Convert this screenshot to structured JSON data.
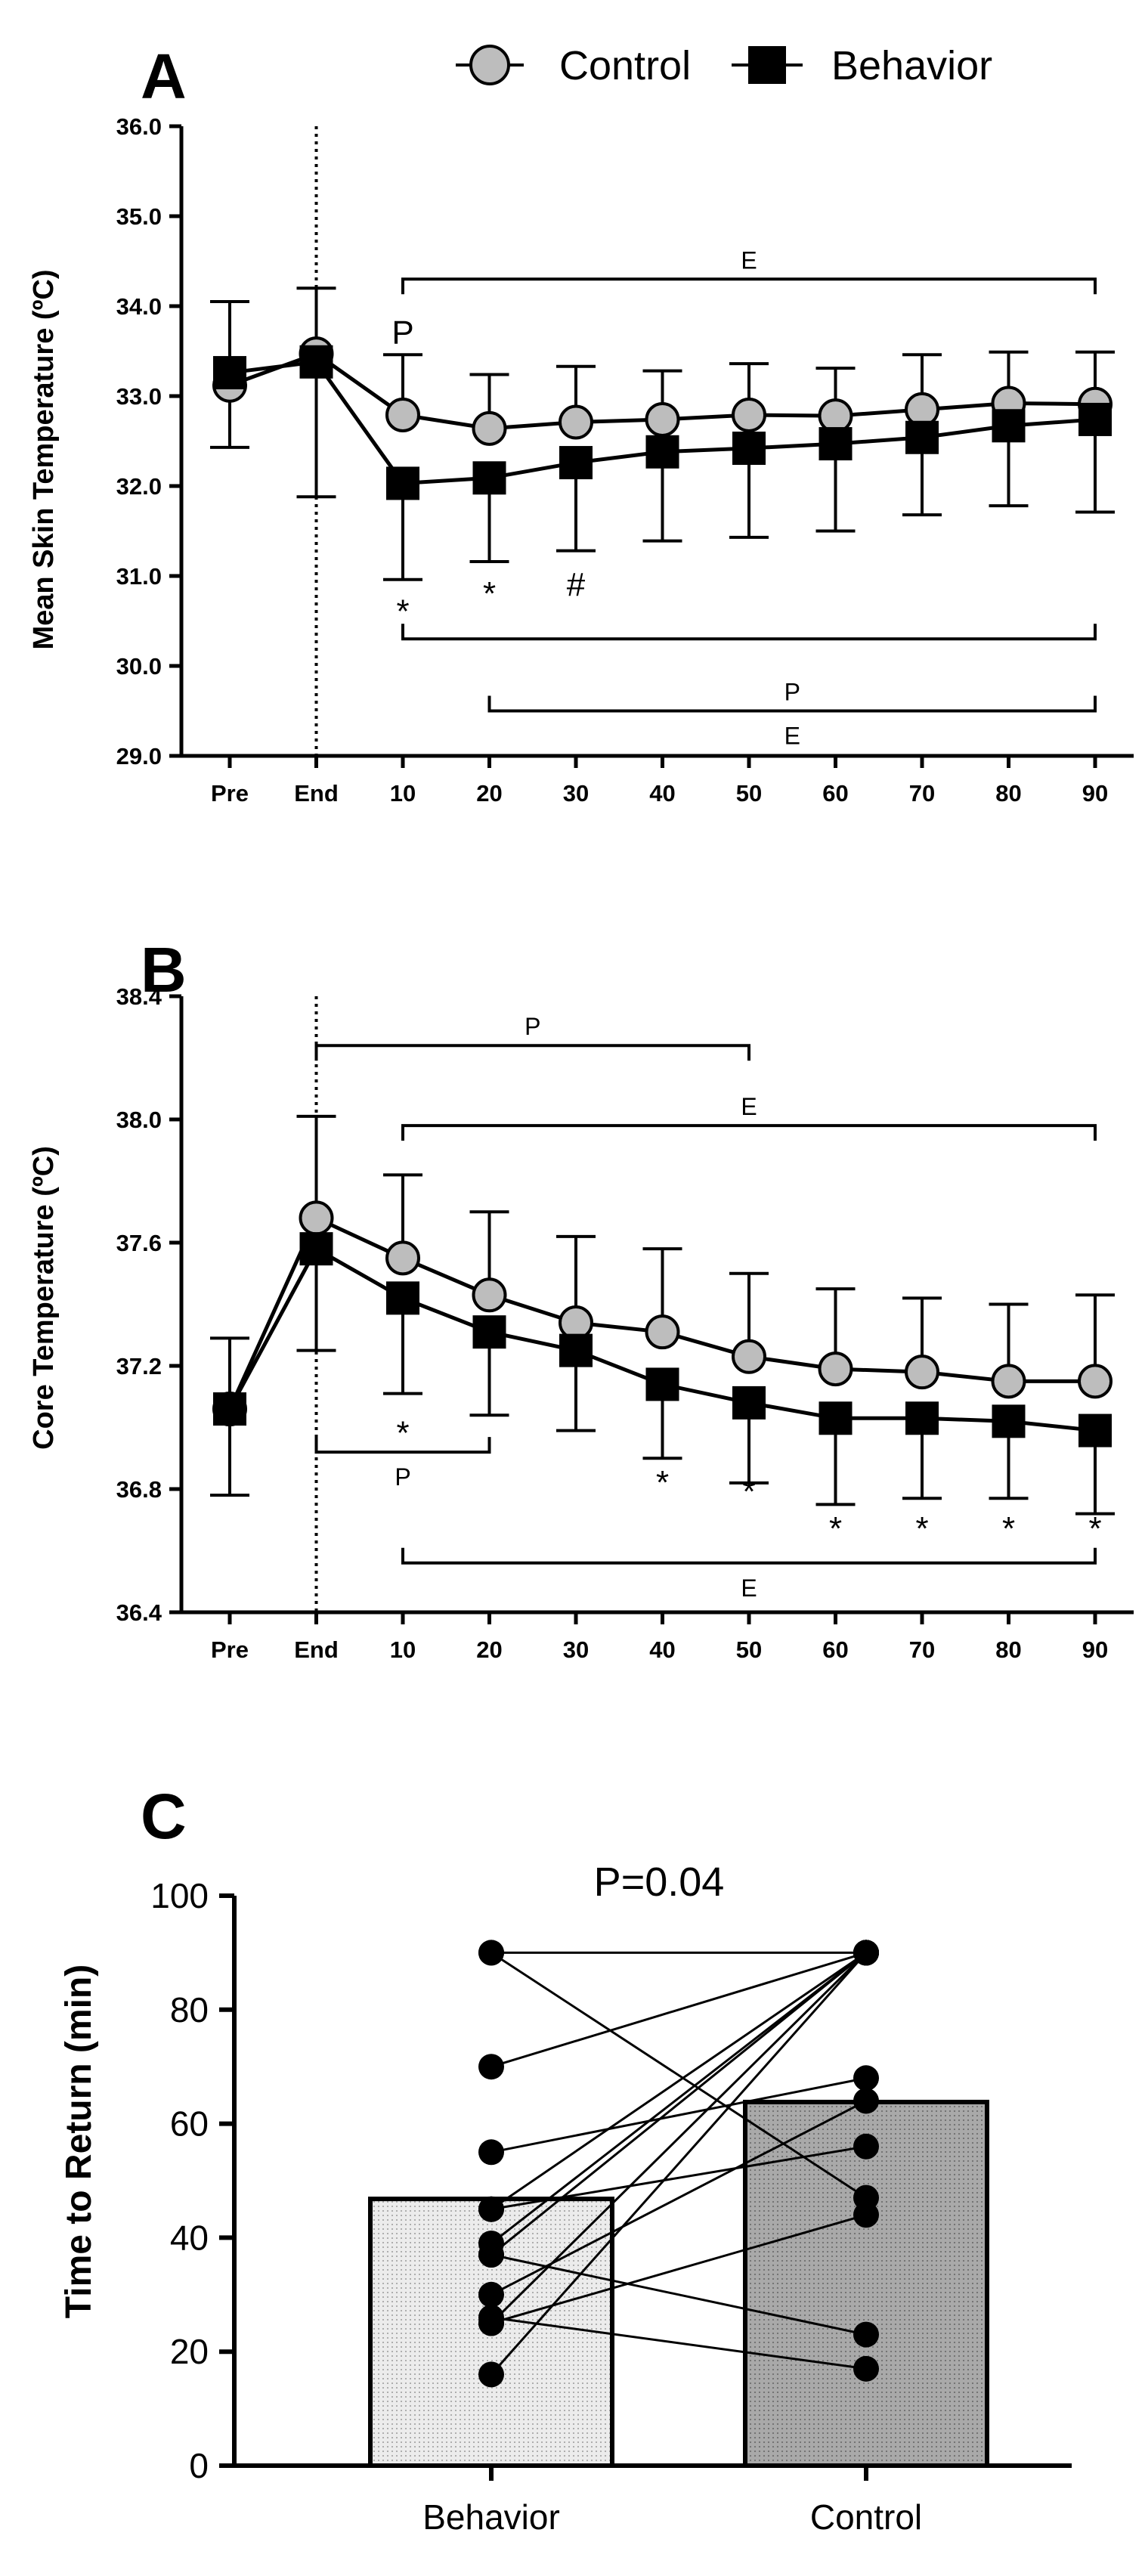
{
  "chart_data": [
    {
      "panel": "A",
      "type": "line",
      "ylabel": "Mean Skin Temperature (ºC)",
      "ylim": [
        29.0,
        36.0
      ],
      "yticks": [
        "29.0",
        "30.0",
        "31.0",
        "32.0",
        "33.0",
        "34.0",
        "35.0",
        "36.0"
      ],
      "categories": [
        "Pre",
        "End",
        "10",
        "20",
        "30",
        "40",
        "50",
        "60",
        "70",
        "80",
        "90"
      ],
      "series": [
        {
          "name": "Control",
          "marker": "circle",
          "values": [
            33.12,
            33.47,
            32.79,
            32.64,
            32.71,
            32.74,
            32.79,
            32.78,
            32.85,
            32.92,
            32.91
          ],
          "err_up": [
            34.05,
            34.2,
            33.46,
            33.24,
            33.33,
            33.28,
            33.36,
            33.31,
            33.46,
            33.49,
            33.49
          ],
          "err_down": [
            null,
            null,
            null,
            null,
            null,
            null,
            null,
            null,
            null,
            null,
            null
          ]
        },
        {
          "name": "Behavior",
          "marker": "square",
          "values": [
            33.26,
            33.38,
            32.03,
            32.09,
            32.26,
            32.38,
            32.42,
            32.47,
            32.54,
            32.67,
            32.74
          ],
          "err_up": [
            null,
            null,
            null,
            null,
            null,
            null,
            null,
            null,
            null,
            null,
            null
          ],
          "err_down": [
            32.43,
            31.88,
            30.96,
            31.16,
            31.28,
            31.39,
            31.43,
            31.5,
            31.68,
            31.78,
            31.71
          ]
        }
      ],
      "event_line_at": "End",
      "annotations": [
        {
          "text": "P",
          "at": "10",
          "y": 33.7
        },
        {
          "text": "*",
          "at": "10",
          "y": 30.6
        },
        {
          "text": "*",
          "at": "20",
          "y": 30.8
        },
        {
          "text": "#",
          "at": "30",
          "y": 30.9
        }
      ],
      "brackets": [
        {
          "from": "10",
          "to": "90",
          "y": 34.3,
          "label": "E",
          "ticks": "down",
          "label_pos": "above"
        },
        {
          "from": "10",
          "to": "90",
          "y": 30.3,
          "label": "",
          "ticks": "up",
          "label_pos": "none"
        },
        {
          "from": "20",
          "to": "90",
          "y": 29.5,
          "label": "P",
          "ticks": "up",
          "label_pos": "above"
        },
        {
          "from": "20",
          "to": "90",
          "y": 29.5,
          "label": "E",
          "ticks": "up",
          "label_pos": "below"
        }
      ]
    },
    {
      "panel": "B",
      "type": "line",
      "ylabel": "Core Temperature (ºC)",
      "ylim": [
        36.4,
        38.4
      ],
      "yticks": [
        "36.4",
        "36.8",
        "37.2",
        "37.6",
        "38.0",
        "38.4"
      ],
      "categories": [
        "Pre",
        "End",
        "10",
        "20",
        "30",
        "40",
        "50",
        "60",
        "70",
        "80",
        "90"
      ],
      "series": [
        {
          "name": "Control",
          "marker": "circle",
          "values": [
            37.06,
            37.68,
            37.55,
            37.43,
            37.34,
            37.31,
            37.23,
            37.19,
            37.18,
            37.15,
            37.15
          ],
          "err_up": [
            37.29,
            38.01,
            37.82,
            37.7,
            37.62,
            37.58,
            37.5,
            37.45,
            37.42,
            37.4,
            37.43
          ],
          "err_down": [
            null,
            null,
            null,
            null,
            null,
            null,
            null,
            null,
            null,
            null,
            null
          ]
        },
        {
          "name": "Behavior",
          "marker": "square",
          "values": [
            37.06,
            37.58,
            37.42,
            37.31,
            37.25,
            37.14,
            37.08,
            37.03,
            37.03,
            37.02,
            36.99
          ],
          "err_up": [
            null,
            null,
            null,
            null,
            null,
            null,
            null,
            null,
            null,
            null,
            null
          ],
          "err_down": [
            36.78,
            37.25,
            37.11,
            37.04,
            36.99,
            36.9,
            36.82,
            36.75,
            36.77,
            36.77,
            36.72
          ]
        }
      ],
      "event_line_at": "End",
      "annotations": [
        {
          "text": "*",
          "at": "10",
          "y": 36.98
        },
        {
          "text": "*",
          "at": "40",
          "y": 36.82
        },
        {
          "text": "*",
          "at": "50",
          "y": 36.79
        },
        {
          "text": "*",
          "at": "60",
          "y": 36.67
        },
        {
          "text": "*",
          "at": "70",
          "y": 36.67
        },
        {
          "text": "*",
          "at": "80",
          "y": 36.67
        },
        {
          "text": "*",
          "at": "90",
          "y": 36.67
        }
      ],
      "brackets": [
        {
          "from": "End",
          "to": "50",
          "y": 38.24,
          "label": "P",
          "ticks": "down",
          "label_pos": "above"
        },
        {
          "from": "10",
          "to": "90",
          "y": 37.98,
          "label": "E",
          "ticks": "down",
          "label_pos": "above"
        },
        {
          "from": "End",
          "to": "20",
          "y": 36.92,
          "label": "P",
          "ticks": "up",
          "label_pos": "below"
        },
        {
          "from": "10",
          "to": "90",
          "y": 36.56,
          "label": "E",
          "ticks": "up",
          "label_pos": "below"
        }
      ]
    },
    {
      "panel": "C",
      "type": "bar",
      "ylabel": "Time to Return (min)",
      "ylim": [
        0,
        100
      ],
      "yticks": [
        "0",
        "20",
        "40",
        "60",
        "80",
        "100"
      ],
      "categories": [
        "Behavior",
        "Control"
      ],
      "values": [
        46.8,
        63.8
      ],
      "title": "P=0.04",
      "paired_points": [
        [
          90,
          90
        ],
        [
          90,
          47
        ],
        [
          70,
          90
        ],
        [
          55,
          68
        ],
        [
          45,
          90
        ],
        [
          45,
          56
        ],
        [
          39,
          90
        ],
        [
          37,
          90
        ],
        [
          37,
          23
        ],
        [
          30,
          64
        ],
        [
          25,
          90
        ],
        [
          25,
          44
        ],
        [
          26,
          17
        ],
        [
          16,
          90
        ]
      ]
    }
  ],
  "legend": [
    {
      "label": "Control",
      "marker": "circle"
    },
    {
      "label": "Behavior",
      "marker": "square"
    }
  ],
  "colors": {
    "control_fill": "#bdbdbd",
    "behavior_fill": "#000000",
    "line": "#000000",
    "bar_control": "#a9a9a9",
    "bar_behavior": "#ececec"
  }
}
